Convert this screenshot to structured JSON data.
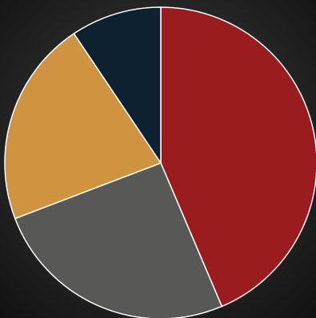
{
  "chart_data": {
    "type": "pie",
    "values": [
      43.6,
      25.6,
      21.4,
      9.4
    ],
    "colors": [
      "#9b1c1f",
      "#585856",
      "#d09440",
      "#0e2130"
    ]
  }
}
